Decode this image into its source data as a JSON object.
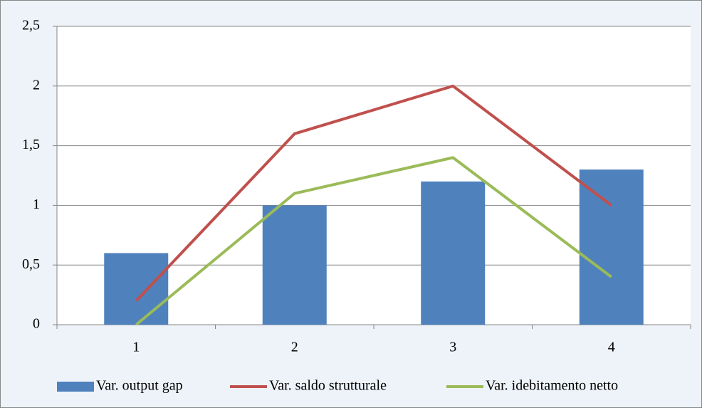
{
  "chart_data": {
    "type": "combo",
    "categories": [
      "1",
      "2",
      "3",
      "4"
    ],
    "series": [
      {
        "name": "Var. output gap",
        "type": "bar",
        "color": "#4f81bd",
        "values": [
          0.6,
          1.0,
          1.2,
          1.3
        ]
      },
      {
        "name": "Var. saldo strutturale",
        "type": "line",
        "color": "#c0504d",
        "values": [
          0.2,
          1.6,
          2.0,
          1.0
        ]
      },
      {
        "name": "Var. idebitamento netto",
        "type": "line",
        "color": "#9bbb59",
        "values": [
          0,
          1.1,
          1.4,
          0.4
        ]
      }
    ],
    "ylim": [
      0,
      2.5
    ],
    "yticks": [
      0,
      {
        "value": 0.5,
        "label": "0,5"
      },
      1,
      {
        "value": 1.5,
        "label": "1,5"
      },
      2,
      {
        "value": 2.5,
        "label": "2,5"
      }
    ],
    "grid": true,
    "legend": "bottom"
  }
}
